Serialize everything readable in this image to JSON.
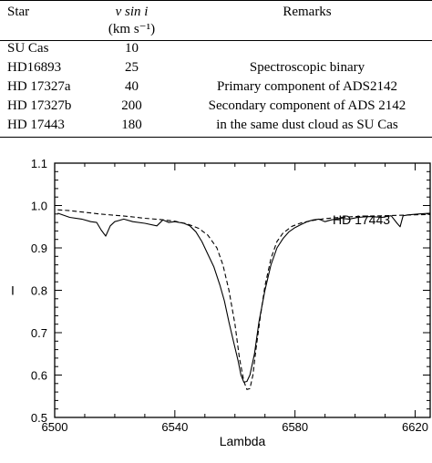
{
  "table": {
    "headers": {
      "star": "Star",
      "vsini": "v sin i",
      "vsini_unit": "(km s⁻¹)",
      "remarks": "Remarks"
    },
    "rows": [
      {
        "star": "SU Cas",
        "vsini": "10",
        "remarks": ""
      },
      {
        "star": "HD16893",
        "vsini": "25",
        "remarks": "Spectroscopic binary"
      },
      {
        "star": "HD 17327a",
        "vsini": "40",
        "remarks": "Primary component of ADS2142"
      },
      {
        "star": "HD 17327b",
        "vsini": "200",
        "remarks": "Secondary component of ADS 2142"
      },
      {
        "star": "HD 17443",
        "vsini": "180",
        "remarks": "in the same dust cloud as SU Cas"
      }
    ]
  },
  "chart_data": {
    "type": "line",
    "annotation": "HD 17443",
    "xlabel": "Lambda",
    "ylabel": "I",
    "xlim": [
      6500,
      6625
    ],
    "ylim": [
      0.5,
      1.1
    ],
    "xticks": [
      6500,
      6540,
      6580,
      6620
    ],
    "xtick_labels": [
      "6500",
      "6540",
      "6580",
      "6620"
    ],
    "yticks": [
      0.5,
      0.6,
      0.7,
      0.8,
      0.9,
      1.0,
      1.1
    ],
    "ytick_labels": [
      "0.5",
      "0.6",
      "0.7",
      "0.8",
      "0.9",
      "1.0",
      "1.1"
    ],
    "series": [
      {
        "style": "solid",
        "x": [
          6501,
          6505,
          6509,
          6512,
          6514,
          6515.5,
          6517,
          6518.5,
          6520,
          6523,
          6526,
          6530,
          6534,
          6536,
          6538,
          6540,
          6543,
          6545,
          6547,
          6549,
          6551,
          6553,
          6555,
          6556.5,
          6558,
          6559.5,
          6561,
          6562,
          6563,
          6564,
          6565,
          6566.5,
          6568,
          6570,
          6572,
          6574,
          6576,
          6578,
          6580,
          6582,
          6584,
          6586,
          6588,
          6590,
          6592,
          6595,
          6598,
          6601,
          6605,
          6609,
          6612,
          6614,
          6615,
          6616,
          6618,
          6621,
          6625
        ],
        "y": [
          0.982,
          0.972,
          0.968,
          0.962,
          0.96,
          0.942,
          0.928,
          0.952,
          0.962,
          0.968,
          0.962,
          0.958,
          0.952,
          0.966,
          0.96,
          0.962,
          0.958,
          0.952,
          0.938,
          0.915,
          0.885,
          0.855,
          0.812,
          0.775,
          0.725,
          0.68,
          0.635,
          0.6,
          0.583,
          0.585,
          0.6,
          0.65,
          0.725,
          0.8,
          0.86,
          0.9,
          0.922,
          0.938,
          0.948,
          0.955,
          0.962,
          0.966,
          0.968,
          0.962,
          0.966,
          0.97,
          0.968,
          0.972,
          0.974,
          0.972,
          0.976,
          0.958,
          0.95,
          0.976,
          0.978,
          0.98,
          0.982
        ]
      },
      {
        "style": "dashed",
        "x": [
          6501,
          6505,
          6510,
          6515,
          6520,
          6525,
          6530,
          6535,
          6540,
          6544,
          6548,
          6551,
          6554,
          6556,
          6558,
          6560,
          6561.5,
          6563,
          6564,
          6565,
          6566,
          6567,
          6568.5,
          6570,
          6572,
          6574,
          6576,
          6579,
          6582,
          6586,
          6590,
          6595,
          6600,
          6605,
          6610,
          6615,
          6620,
          6625
        ],
        "y": [
          0.99,
          0.988,
          0.984,
          0.98,
          0.977,
          0.974,
          0.97,
          0.967,
          0.963,
          0.957,
          0.946,
          0.93,
          0.9,
          0.86,
          0.8,
          0.72,
          0.64,
          0.585,
          0.566,
          0.568,
          0.6,
          0.66,
          0.74,
          0.81,
          0.875,
          0.915,
          0.935,
          0.951,
          0.959,
          0.965,
          0.969,
          0.972,
          0.974,
          0.975,
          0.976,
          0.977,
          0.978,
          0.979
        ]
      }
    ]
  }
}
